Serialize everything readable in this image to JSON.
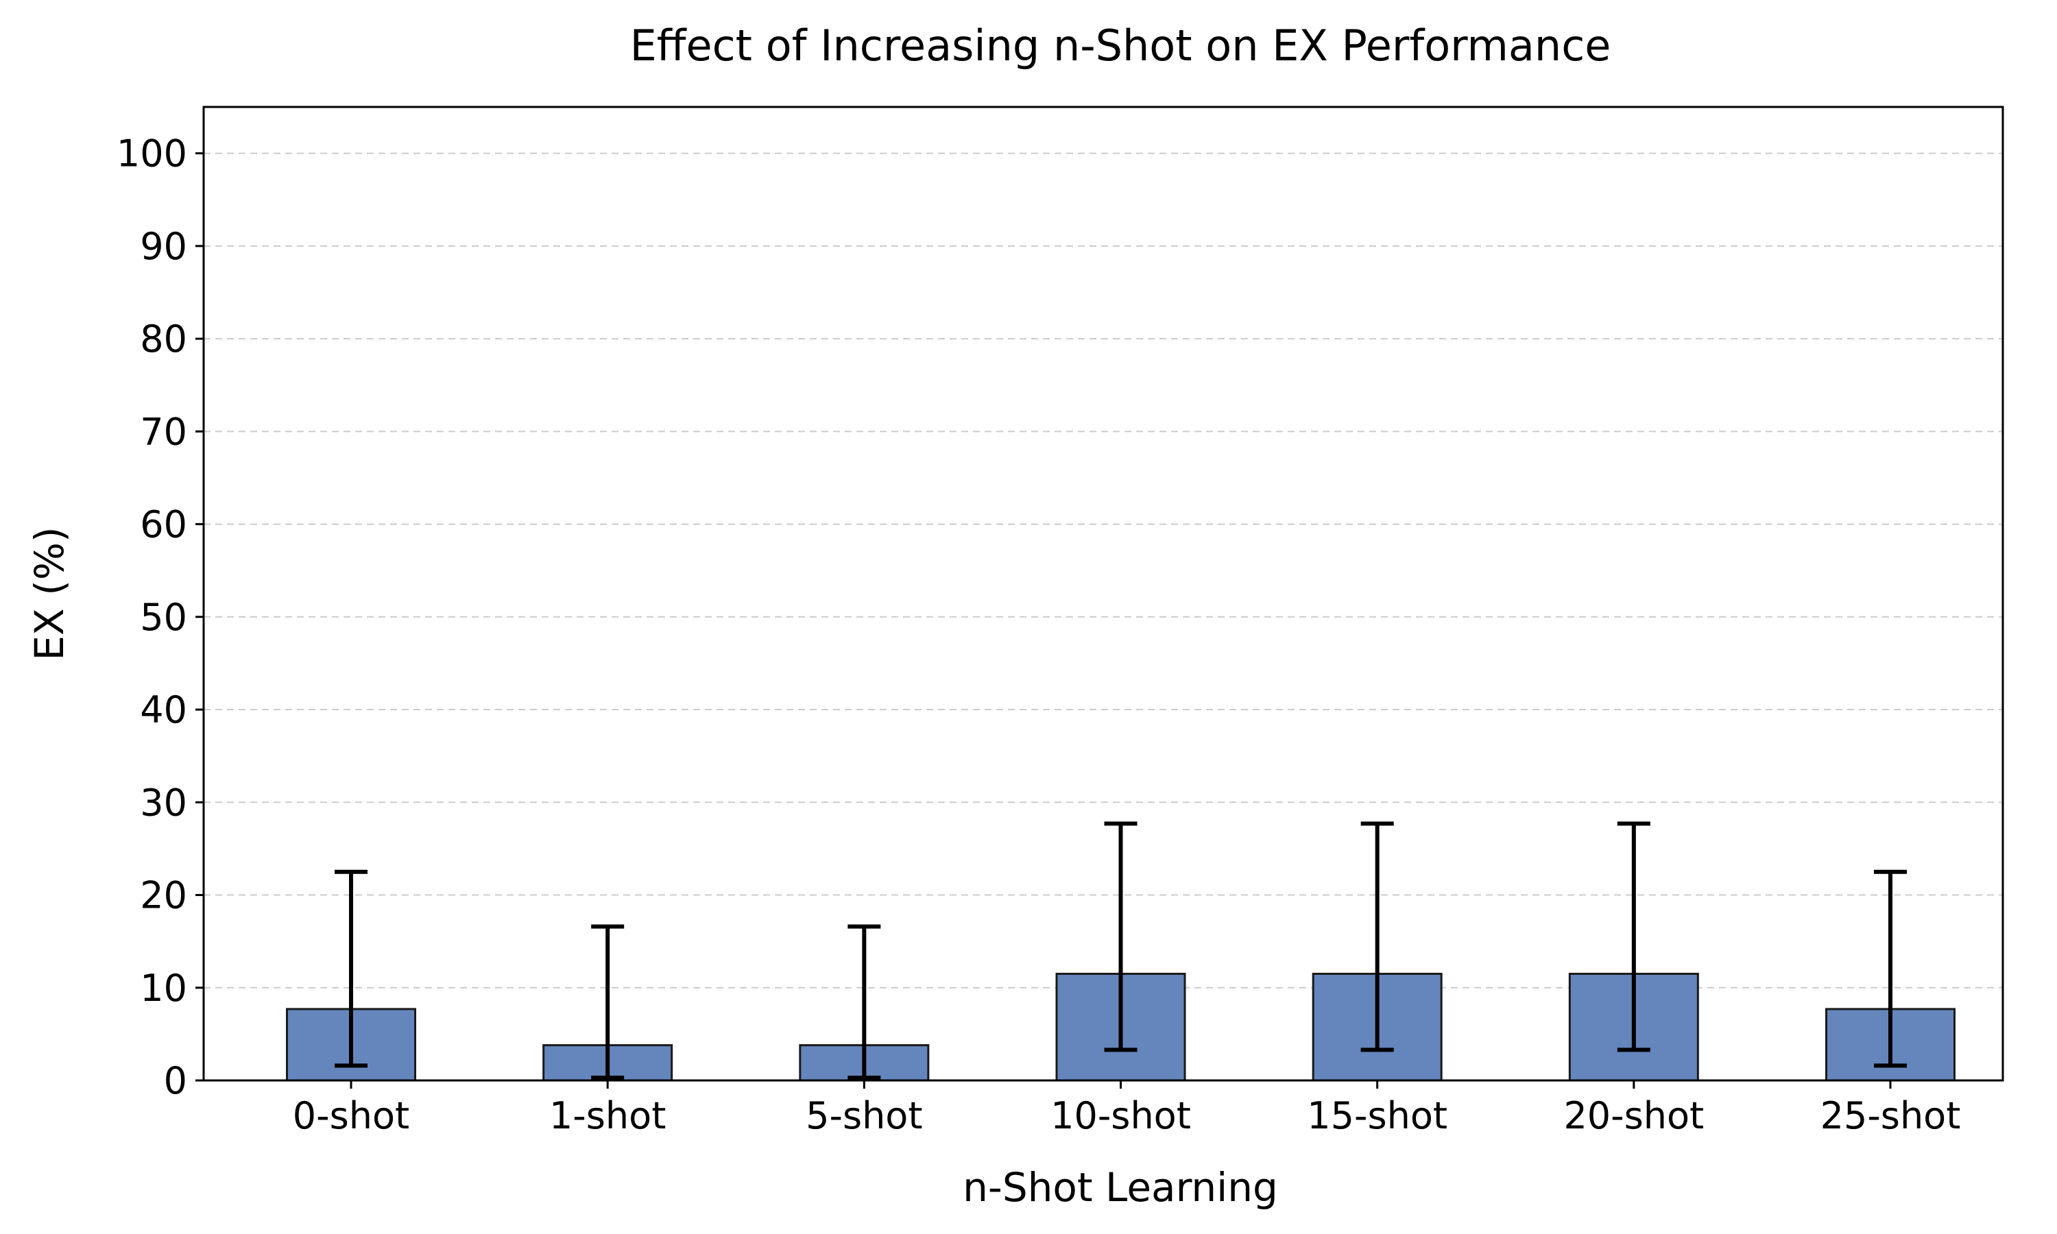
{
  "chart_data": {
    "type": "bar",
    "title": "Effect of Increasing n-Shot on EX Performance",
    "xlabel": "n-Shot Learning",
    "ylabel": "EX (%)",
    "categories": [
      "0-shot",
      "1-shot",
      "5-shot",
      "10-shot",
      "15-shot",
      "20-shot",
      "25-shot"
    ],
    "values": [
      7.7,
      3.8,
      3.8,
      11.5,
      11.5,
      11.5,
      7.7
    ],
    "error_lower": [
      1.6,
      0.3,
      0.3,
      3.3,
      3.3,
      3.3,
      1.6
    ],
    "error_upper": [
      22.5,
      16.6,
      16.6,
      27.7,
      27.7,
      27.7,
      22.5
    ],
    "ylim": [
      0,
      105
    ],
    "yticks": [
      0,
      10,
      20,
      30,
      40,
      50,
      60,
      70,
      80,
      90,
      100
    ],
    "grid": "y-dashed",
    "bar_color": "#6586bc"
  }
}
